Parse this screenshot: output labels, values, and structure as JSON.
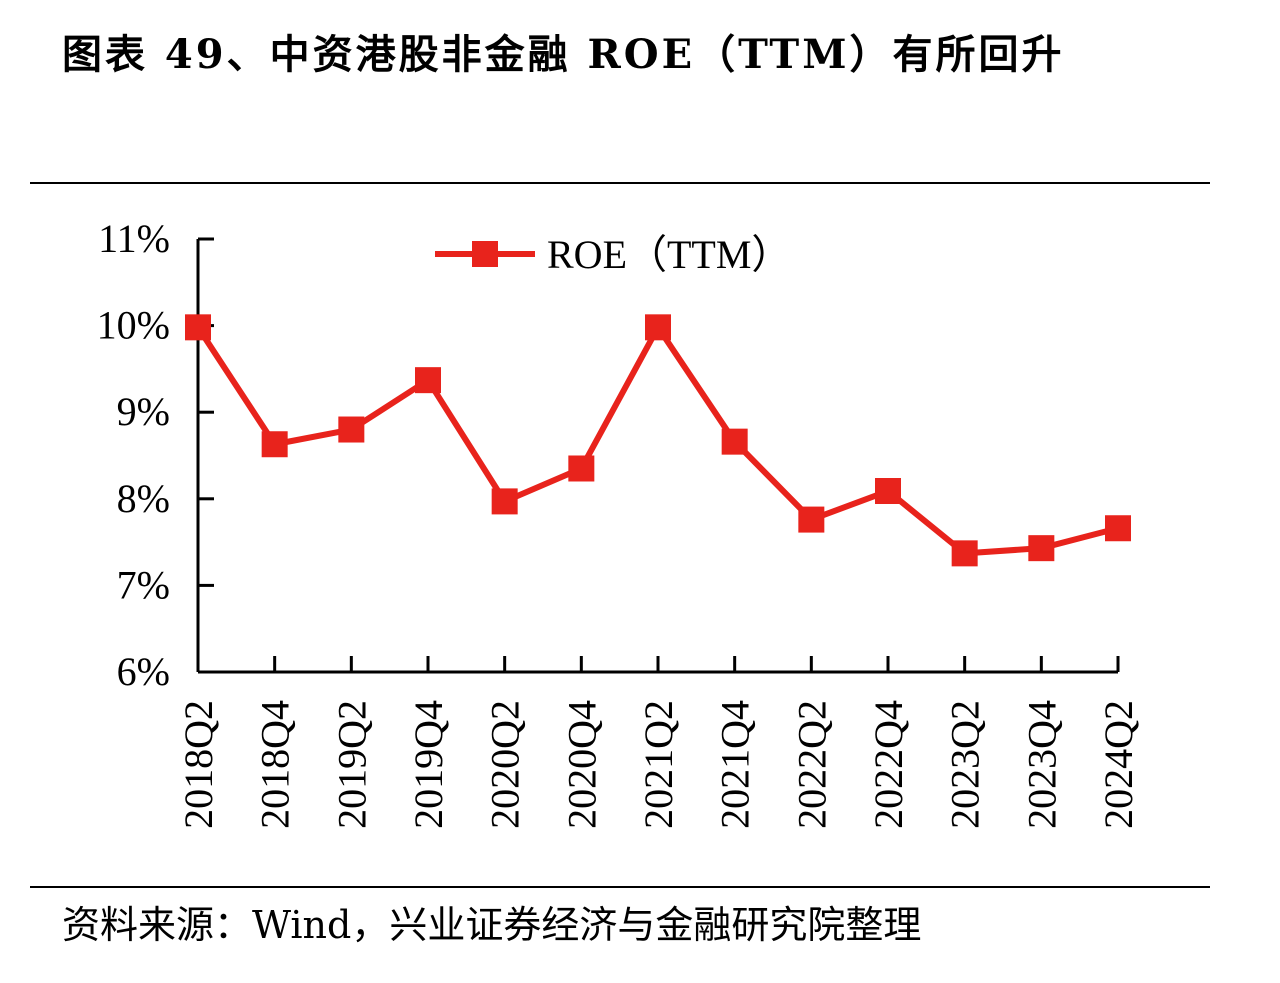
{
  "title": "图表 49、中资港股非金融 ROE（TTM）有所回升",
  "source": "资料来源：Wind，兴业证券经济与金融研究院整理",
  "colors": {
    "series": "#e8231c",
    "axis": "#000000"
  },
  "chart_data": {
    "type": "line",
    "title": "",
    "xlabel": "",
    "ylabel": "",
    "categories": [
      "2018Q2",
      "2018Q4",
      "2019Q2",
      "2019Q4",
      "2020Q2",
      "2020Q4",
      "2021Q2",
      "2021Q4",
      "2022Q2",
      "2022Q4",
      "2023Q2",
      "2023Q4",
      "2024Q2"
    ],
    "series": [
      {
        "name": "ROE（TTM）",
        "marker": "square",
        "values": [
          9.98,
          8.63,
          8.8,
          9.37,
          7.97,
          8.35,
          9.98,
          8.66,
          7.76,
          8.09,
          7.37,
          7.43,
          7.66
        ]
      }
    ],
    "ylim": [
      6,
      11
    ],
    "yticks": [
      "6%",
      "7%",
      "8%",
      "9%",
      "10%",
      "11%"
    ],
    "ytick_values": [
      6,
      7,
      8,
      9,
      10,
      11
    ],
    "y_unit": "%",
    "grid": false,
    "legend": "top-center"
  }
}
